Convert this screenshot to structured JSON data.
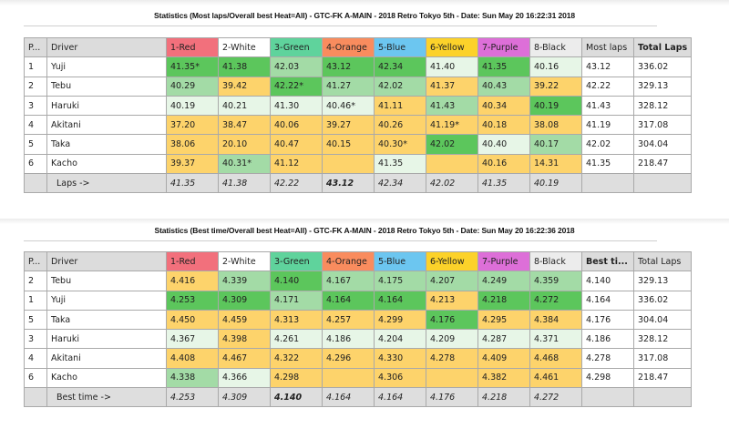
{
  "colors": {
    "lane_red": "#f2707c",
    "lane_white": "#ffffff",
    "lane_green": "#5fd39c",
    "lane_orange": "#f98c5e",
    "lane_blue": "#6cc6f0",
    "lane_yellow": "#fcd22a",
    "lane_purple": "#dd6fd8",
    "lane_black": "#ececec",
    "cell_best": "#5cc65c",
    "cell_good": "#a3dba6",
    "cell_ok": "#e7f6e7",
    "cell_low": "#fdd36b"
  },
  "lanes": [
    "1-Red",
    "2-White",
    "3-Green",
    "4-Orange",
    "5-Blue",
    "6-Yellow",
    "7-Purple",
    "8-Black"
  ],
  "most_laps": {
    "title": "Statistics (Most laps/Overall best Heat=All) - GTC-FK A-MAIN - 2018 Retro Tokyo 5th - Date: Sun May 20 16:22:31 2018",
    "headers": {
      "pos": "P...",
      "driver": "Driver",
      "extra1": "Most laps",
      "extra2": "Total Laps"
    },
    "rows": [
      {
        "pos": "1",
        "driver": "Yuji",
        "cells": [
          {
            "v": "41.35*",
            "c": "G",
            "b": true
          },
          {
            "v": "41.38",
            "c": "G",
            "b": true
          },
          {
            "v": "42.03",
            "c": "M",
            "b": false
          },
          {
            "v": "43.12",
            "c": "G",
            "b": true
          },
          {
            "v": "42.34",
            "c": "G",
            "b": true
          },
          {
            "v": "41.40",
            "c": "L",
            "b": false
          },
          {
            "v": "41.35",
            "c": "G",
            "b": true
          },
          {
            "v": "40.16",
            "c": "L",
            "b": false
          }
        ],
        "extra1": "43.12",
        "extra1_bold": true,
        "extra2": "336.02",
        "extra2_bold": true
      },
      {
        "pos": "2",
        "driver": "Tebu",
        "cells": [
          {
            "v": "40.29",
            "c": "M",
            "b": false
          },
          {
            "v": "39.42",
            "c": "Y",
            "b": false
          },
          {
            "v": "42.22*",
            "c": "G",
            "b": true
          },
          {
            "v": "41.27",
            "c": "M",
            "b": false
          },
          {
            "v": "42.02",
            "c": "M",
            "b": false
          },
          {
            "v": "41.37",
            "c": "Y",
            "b": false
          },
          {
            "v": "40.43",
            "c": "M",
            "b": false
          },
          {
            "v": "39.22",
            "c": "Y",
            "b": false
          }
        ],
        "extra1": "42.22",
        "extra1_bold": false,
        "extra2": "329.13",
        "extra2_bold": false
      },
      {
        "pos": "3",
        "driver": "Haruki",
        "cells": [
          {
            "v": "40.19",
            "c": "L",
            "b": false
          },
          {
            "v": "40.21",
            "c": "L",
            "b": false
          },
          {
            "v": "41.30",
            "c": "L",
            "b": false
          },
          {
            "v": "40.46*",
            "c": "L",
            "b": false
          },
          {
            "v": "41.11",
            "c": "Y",
            "b": false
          },
          {
            "v": "41.43",
            "c": "M",
            "b": false
          },
          {
            "v": "40.34",
            "c": "Y",
            "b": false
          },
          {
            "v": "40.19",
            "c": "G",
            "b": true
          }
        ],
        "extra1": "41.43",
        "extra1_bold": false,
        "extra2": "328.12",
        "extra2_bold": false
      },
      {
        "pos": "4",
        "driver": "Akitani",
        "cells": [
          {
            "v": "37.20",
            "c": "Y",
            "b": false
          },
          {
            "v": "38.47",
            "c": "Y",
            "b": false
          },
          {
            "v": "40.06",
            "c": "Y",
            "b": false
          },
          {
            "v": "39.27",
            "c": "Y",
            "b": false
          },
          {
            "v": "40.26",
            "c": "Y",
            "b": false
          },
          {
            "v": "41.19*",
            "c": "Y",
            "b": false
          },
          {
            "v": "40.18",
            "c": "Y",
            "b": false
          },
          {
            "v": "38.08",
            "c": "Y",
            "b": false
          }
        ],
        "extra1": "41.19",
        "extra1_bold": false,
        "extra2": "317.08",
        "extra2_bold": false
      },
      {
        "pos": "5",
        "driver": "Taka",
        "cells": [
          {
            "v": "38.06",
            "c": "Y",
            "b": false
          },
          {
            "v": "20.10",
            "c": "Y",
            "b": false
          },
          {
            "v": "40.47",
            "c": "Y",
            "b": false
          },
          {
            "v": "40.15",
            "c": "Y",
            "b": false
          },
          {
            "v": "40.30*",
            "c": "Y",
            "b": false
          },
          {
            "v": "42.02",
            "c": "G",
            "b": true
          },
          {
            "v": "40.40",
            "c": "L",
            "b": false
          },
          {
            "v": "40.17",
            "c": "M",
            "b": false
          }
        ],
        "extra1": "42.02",
        "extra1_bold": false,
        "extra2": "304.04",
        "extra2_bold": false
      },
      {
        "pos": "6",
        "driver": "Kacho",
        "cells": [
          {
            "v": "39.37",
            "c": "Y",
            "b": false
          },
          {
            "v": "40.31*",
            "c": "M",
            "b": false
          },
          {
            "v": "41.12",
            "c": "Y",
            "b": false
          },
          {
            "v": "",
            "c": "Y",
            "b": false
          },
          {
            "v": "41.35",
            "c": "L",
            "b": false
          },
          {
            "v": "",
            "c": "Y",
            "b": false
          },
          {
            "v": "40.16",
            "c": "Y",
            "b": false
          },
          {
            "v": "14.31",
            "c": "Y",
            "b": false
          }
        ],
        "extra1": "41.35",
        "extra1_bold": false,
        "extra2": "218.47",
        "extra2_bold": false
      }
    ],
    "footer": {
      "label": "Laps ->",
      "values": [
        {
          "v": "41.35",
          "b": false
        },
        {
          "v": "41.38",
          "b": false
        },
        {
          "v": "42.22",
          "b": false
        },
        {
          "v": "43.12",
          "b": true
        },
        {
          "v": "42.34",
          "b": false
        },
        {
          "v": "42.02",
          "b": false
        },
        {
          "v": "41.35",
          "b": false
        },
        {
          "v": "40.19",
          "b": false
        }
      ]
    }
  },
  "best_time": {
    "title": "Statistics (Best time/Overall best Heat=All) - GTC-FK A-MAIN - 2018 Retro Tokyo 5th - Date: Sun May 20 16:22:36 2018",
    "headers": {
      "pos": "P...",
      "driver": "Driver",
      "extra1": "Best ti...",
      "extra2": "Total Laps"
    },
    "rows": [
      {
        "pos": "2",
        "driver": "Tebu",
        "cells": [
          {
            "v": "4.416",
            "c": "Y",
            "b": false
          },
          {
            "v": "4.339",
            "c": "M",
            "b": false
          },
          {
            "v": "4.140",
            "c": "G",
            "b": true
          },
          {
            "v": "4.167",
            "c": "M",
            "b": false
          },
          {
            "v": "4.175",
            "c": "M",
            "b": false
          },
          {
            "v": "4.207",
            "c": "M",
            "b": false
          },
          {
            "v": "4.249",
            "c": "M",
            "b": false
          },
          {
            "v": "4.359",
            "c": "M",
            "b": false
          }
        ],
        "extra1": "4.140",
        "extra1_bold": true,
        "extra2": "329.13",
        "extra2_bold": false
      },
      {
        "pos": "1",
        "driver": "Yuji",
        "cells": [
          {
            "v": "4.253",
            "c": "G",
            "b": true
          },
          {
            "v": "4.309",
            "c": "G",
            "b": true
          },
          {
            "v": "4.171",
            "c": "M",
            "b": false
          },
          {
            "v": "4.164",
            "c": "G",
            "b": true
          },
          {
            "v": "4.164",
            "c": "G",
            "b": true
          },
          {
            "v": "4.213",
            "c": "Y",
            "b": false
          },
          {
            "v": "4.218",
            "c": "G",
            "b": true
          },
          {
            "v": "4.272",
            "c": "G",
            "b": true
          }
        ],
        "extra1": "4.164",
        "extra1_bold": false,
        "extra2": "336.02",
        "extra2_bold": true
      },
      {
        "pos": "5",
        "driver": "Taka",
        "cells": [
          {
            "v": "4.450",
            "c": "Y",
            "b": false
          },
          {
            "v": "4.459",
            "c": "Y",
            "b": false
          },
          {
            "v": "4.313",
            "c": "Y",
            "b": false
          },
          {
            "v": "4.257",
            "c": "Y",
            "b": false
          },
          {
            "v": "4.299",
            "c": "Y",
            "b": false
          },
          {
            "v": "4.176",
            "c": "G",
            "b": true
          },
          {
            "v": "4.295",
            "c": "Y",
            "b": false
          },
          {
            "v": "4.384",
            "c": "Y",
            "b": false
          }
        ],
        "extra1": "4.176",
        "extra1_bold": false,
        "extra2": "304.04",
        "extra2_bold": false
      },
      {
        "pos": "3",
        "driver": "Haruki",
        "cells": [
          {
            "v": "4.367",
            "c": "L",
            "b": false
          },
          {
            "v": "4.398",
            "c": "Y",
            "b": false
          },
          {
            "v": "4.261",
            "c": "L",
            "b": false
          },
          {
            "v": "4.186",
            "c": "L",
            "b": false
          },
          {
            "v": "4.204",
            "c": "L",
            "b": false
          },
          {
            "v": "4.209",
            "c": "L",
            "b": false
          },
          {
            "v": "4.287",
            "c": "L",
            "b": false
          },
          {
            "v": "4.371",
            "c": "L",
            "b": false
          }
        ],
        "extra1": "4.186",
        "extra1_bold": false,
        "extra2": "328.12",
        "extra2_bold": false
      },
      {
        "pos": "4",
        "driver": "Akitani",
        "cells": [
          {
            "v": "4.408",
            "c": "Y",
            "b": false
          },
          {
            "v": "4.467",
            "c": "Y",
            "b": false
          },
          {
            "v": "4.322",
            "c": "Y",
            "b": false
          },
          {
            "v": "4.296",
            "c": "Y",
            "b": false
          },
          {
            "v": "4.330",
            "c": "Y",
            "b": false
          },
          {
            "v": "4.278",
            "c": "Y",
            "b": false
          },
          {
            "v": "4.409",
            "c": "Y",
            "b": false
          },
          {
            "v": "4.468",
            "c": "Y",
            "b": false
          }
        ],
        "extra1": "4.278",
        "extra1_bold": false,
        "extra2": "317.08",
        "extra2_bold": false
      },
      {
        "pos": "6",
        "driver": "Kacho",
        "cells": [
          {
            "v": "4.338",
            "c": "M",
            "b": false
          },
          {
            "v": "4.366",
            "c": "L",
            "b": false
          },
          {
            "v": "4.298",
            "c": "Y",
            "b": false
          },
          {
            "v": "",
            "c": "Y",
            "b": false
          },
          {
            "v": "4.306",
            "c": "Y",
            "b": false
          },
          {
            "v": "",
            "c": "Y",
            "b": false
          },
          {
            "v": "4.382",
            "c": "Y",
            "b": false
          },
          {
            "v": "4.461",
            "c": "Y",
            "b": false
          }
        ],
        "extra1": "4.298",
        "extra1_bold": false,
        "extra2": "218.47",
        "extra2_bold": false
      }
    ],
    "footer": {
      "label": "Best time ->",
      "values": [
        {
          "v": "4.253",
          "b": false
        },
        {
          "v": "4.309",
          "b": false
        },
        {
          "v": "4.140",
          "b": true
        },
        {
          "v": "4.164",
          "b": false
        },
        {
          "v": "4.164",
          "b": false
        },
        {
          "v": "4.176",
          "b": false
        },
        {
          "v": "4.218",
          "b": false
        },
        {
          "v": "4.272",
          "b": false
        }
      ]
    }
  }
}
